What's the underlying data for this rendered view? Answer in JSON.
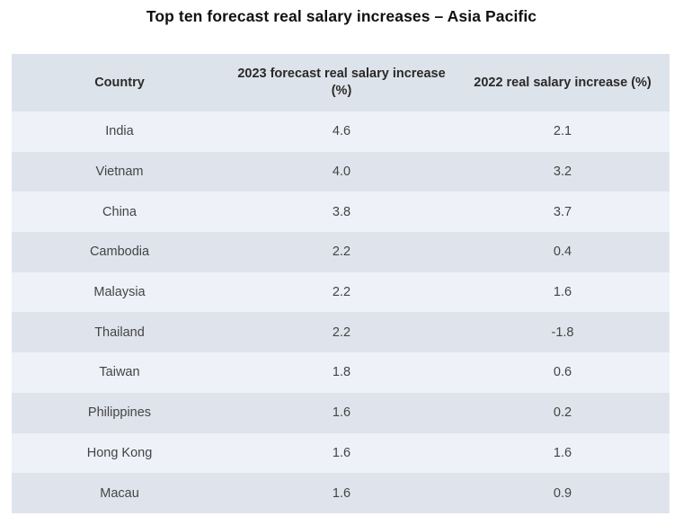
{
  "chart_data": {
    "type": "table",
    "title": "Top ten forecast real salary increases – Asia Pacific",
    "columns": [
      "Country",
      "2023 forecast real salary increase (%)",
      "2022 real salary increase (%)"
    ],
    "categories": [
      "India",
      "Vietnam",
      "China",
      "Cambodia",
      "Malaysia",
      "Thailand",
      "Taiwan",
      "Philippines",
      "Hong Kong",
      "Macau"
    ],
    "series": [
      {
        "name": "2023 forecast real salary increase (%)",
        "values": [
          "4.6",
          "4.0",
          "3.8",
          "2.2",
          "2.2",
          "2.2",
          "1.8",
          "1.6",
          "1.6",
          "1.6"
        ]
      },
      {
        "name": "2022 real salary increase (%)",
        "values": [
          "2.1",
          "3.2",
          "3.7",
          "0.4",
          "1.6",
          "-1.8",
          "0.6",
          "0.2",
          "1.6",
          "0.9"
        ]
      }
    ]
  }
}
